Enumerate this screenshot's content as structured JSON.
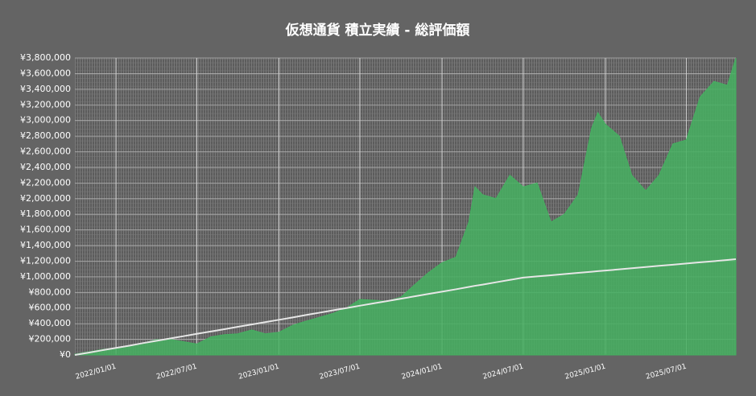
{
  "chart_data": {
    "type": "area",
    "title": "仮想通貨 積立実績 - 総評価額",
    "x": [
      "2021/10/01",
      "2021/11/01",
      "2021/12/01",
      "2022/01/01",
      "2022/02/01",
      "2022/03/01",
      "2022/04/01",
      "2022/05/01",
      "2022/06/01",
      "2022/07/01",
      "2022/08/01",
      "2022/09/01",
      "2022/10/01",
      "2022/11/01",
      "2022/12/01",
      "2023/01/01",
      "2023/02/01",
      "2023/03/01",
      "2023/04/01",
      "2023/05/01",
      "2023/06/01",
      "2023/07/01",
      "2023/08/01",
      "2023/09/01",
      "2023/10/01",
      "2023/11/01",
      "2023/12/01",
      "2024/01/01",
      "2024/02/01",
      "2024/03/01",
      "2024/03/15",
      "2024/04/01",
      "2024/05/01",
      "2024/06/01",
      "2024/07/01",
      "2024/08/01",
      "2024/09/01",
      "2024/10/01",
      "2024/11/01",
      "2024/12/01",
      "2024/12/15",
      "2025/01/01",
      "2025/02/01",
      "2025/03/01",
      "2025/04/01",
      "2025/05/01",
      "2025/06/01",
      "2025/07/01",
      "2025/08/01",
      "2025/09/01",
      "2025/10/01",
      "2025/10/20"
    ],
    "series": [
      {
        "type": "area",
        "color": "#45b060",
        "values": [
          10000,
          40000,
          70000,
          90000,
          120000,
          150000,
          195000,
          200000,
          170000,
          140000,
          230000,
          260000,
          270000,
          320000,
          270000,
          290000,
          380000,
          430000,
          480000,
          530000,
          600000,
          710000,
          700000,
          690000,
          740000,
          900000,
          1050000,
          1180000,
          1250000,
          1700000,
          2150000,
          2050000,
          2000000,
          2300000,
          2150000,
          2200000,
          1700000,
          1800000,
          2050000,
          2900000,
          3100000,
          2950000,
          2800000,
          2300000,
          2100000,
          2300000,
          2700000,
          2750000,
          3300000,
          3500000,
          3450000,
          3800000
        ]
      },
      {
        "type": "line",
        "color": "#e6e6e6",
        "values": [
          0,
          30000,
          60000,
          90000,
          120000,
          150000,
          180000,
          210000,
          240000,
          270000,
          300000,
          330000,
          360000,
          390000,
          420000,
          450000,
          480000,
          510000,
          540000,
          570000,
          600000,
          630000,
          660000,
          690000,
          720000,
          750000,
          780000,
          810000,
          840000,
          870000,
          885000,
          900000,
          930000,
          960000,
          990000,
          1005000,
          1020000,
          1035000,
          1050000,
          1065000,
          1072000,
          1080000,
          1095000,
          1110000,
          1125000,
          1140000,
          1155000,
          1170000,
          1185000,
          1200000,
          1215000,
          1225000
        ]
      }
    ],
    "xlim": [
      "2021/10/01",
      "2025/10/20"
    ],
    "xticks": [
      "2022/01/01",
      "2022/07/01",
      "2023/01/01",
      "2023/07/01",
      "2024/01/01",
      "2024/07/01",
      "2025/01/01",
      "2025/07/01"
    ],
    "ylim": [
      0,
      3800000
    ],
    "yticks": [
      {
        "value": 0,
        "label": "¥0"
      },
      {
        "value": 200000,
        "label": "¥200,000"
      },
      {
        "value": 400000,
        "label": "¥400,000"
      },
      {
        "value": 600000,
        "label": "¥600,000"
      },
      {
        "value": 800000,
        "label": "¥800,000"
      },
      {
        "value": 1000000,
        "label": "¥1,000,000"
      },
      {
        "value": 1200000,
        "label": "¥1,200,000"
      },
      {
        "value": 1400000,
        "label": "¥1,400,000"
      },
      {
        "value": 1600000,
        "label": "¥1,600,000"
      },
      {
        "value": 1800000,
        "label": "¥1,800,000"
      },
      {
        "value": 2000000,
        "label": "¥2,000,000"
      },
      {
        "value": 2200000,
        "label": "¥2,200,000"
      },
      {
        "value": 2400000,
        "label": "¥2,400,000"
      },
      {
        "value": 2600000,
        "label": "¥2,600,000"
      },
      {
        "value": 2800000,
        "label": "¥2,800,000"
      },
      {
        "value": 3000000,
        "label": "¥3,000,000"
      },
      {
        "value": 3200000,
        "label": "¥3,200,000"
      },
      {
        "value": 3400000,
        "label": "¥3,400,000"
      },
      {
        "value": 3600000,
        "label": "¥3,600,000"
      },
      {
        "value": 3800000,
        "label": "¥3,800,000"
      }
    ],
    "grid": true
  }
}
